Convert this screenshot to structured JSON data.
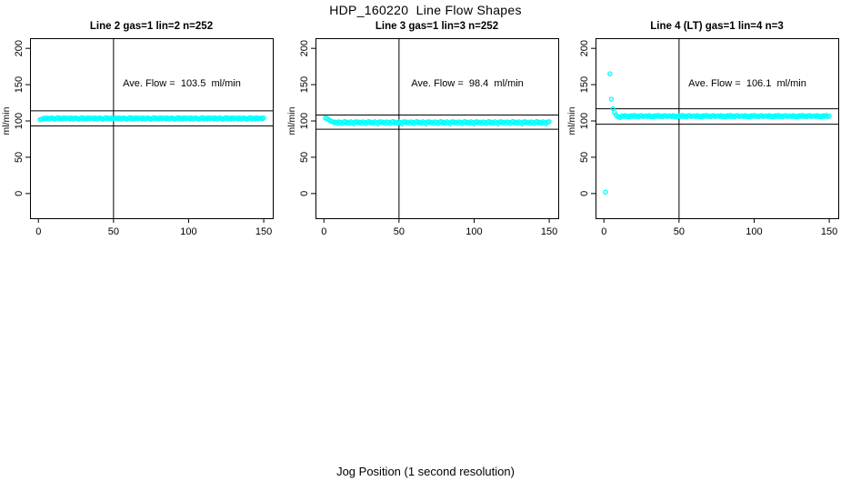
{
  "page": {
    "title": "HDP_160220  Line Flow Shapes",
    "xlabel": "Jog Position (1 second resolution)"
  },
  "chart_data": [
    {
      "type": "scatter",
      "title": "Line 2 gas=1 lin=2 n=252",
      "ylabel": "ml/min",
      "annotation": "Ave. Flow =  103.5  ml/min",
      "ave_flow": 103.5,
      "x_ticks": [
        0,
        50,
        100,
        150
      ],
      "y_ticks": [
        0,
        50,
        100,
        150,
        200
      ],
      "xlim": [
        -5.6,
        156
      ],
      "ylim": [
        -34,
        214
      ],
      "vline": 50,
      "hlines": [
        113.9,
        93.2
      ],
      "point_color": "#00FFFF",
      "annotation_x": 95,
      "annotation_y": 150,
      "points": [
        [
          1,
          101.6
        ],
        [
          2,
          102.4
        ],
        [
          3,
          103.0
        ]
      ],
      "steady": {
        "x_start": 4,
        "x_end": 150,
        "step": 1,
        "base": 103.5,
        "wiggle": [
          0.4,
          -0.5,
          0.8,
          -0.9,
          0.1,
          0.7,
          -0.3,
          -1.1,
          0.5,
          1.0,
          -0.6,
          0.2,
          -0.8,
          0.9,
          -0.2,
          0.3
        ]
      }
    },
    {
      "type": "scatter",
      "title": "Line 3 gas=1 lin=3 n=252",
      "ylabel": "ml/min",
      "annotation": "Ave. Flow =  98.4  ml/min",
      "ave_flow": 98.4,
      "x_ticks": [
        0,
        50,
        100,
        150
      ],
      "y_ticks": [
        0,
        50,
        100,
        150,
        200
      ],
      "xlim": [
        -5.6,
        156
      ],
      "ylim": [
        -34,
        214
      ],
      "vline": 50,
      "hlines": [
        108.2,
        88.6
      ],
      "point_color": "#00FFFF",
      "annotation_x": 95,
      "annotation_y": 150,
      "points": [
        [
          1,
          103.8
        ],
        [
          2,
          103.4
        ],
        [
          3,
          102.2
        ],
        [
          4,
          100.6
        ],
        [
          5,
          99.4
        ]
      ],
      "steady": {
        "x_start": 6,
        "x_end": 150,
        "step": 1,
        "base": 98.2,
        "wiggle": [
          0.8,
          -0.7,
          0.3,
          -1.6,
          0.6,
          -0.2,
          -1.9,
          0.4,
          1.0,
          -0.9,
          0.1,
          -1.4,
          0.7,
          -0.4,
          -2.1,
          0.5
        ]
      }
    },
    {
      "type": "scatter",
      "title": "Line 4 (LT) gas=1 lin=4 n=3",
      "ylabel": "ml/min",
      "annotation": "Ave. Flow =  106.1  ml/min",
      "ave_flow": 106.1,
      "x_ticks": [
        0,
        50,
        100,
        150
      ],
      "y_ticks": [
        0,
        50,
        100,
        150,
        200
      ],
      "xlim": [
        -5.6,
        156
      ],
      "ylim": [
        -34,
        214
      ],
      "vline": 50,
      "hlines": [
        116.7,
        95.5
      ],
      "point_color": "#00FFFF",
      "annotation_x": 95,
      "annotation_y": 150,
      "points": [
        [
          1,
          2
        ],
        [
          4,
          165
        ],
        [
          5,
          130
        ],
        [
          6,
          117
        ],
        [
          7,
          112
        ],
        [
          8,
          108.5
        ],
        [
          9,
          106.3
        ],
        [
          10,
          105.2
        ],
        [
          11,
          104.8
        ]
      ],
      "steady": {
        "x_start": 12,
        "x_end": 150,
        "step": 1,
        "base": 106.6,
        "wiggle": [
          0.5,
          -0.4,
          0.9,
          -0.8,
          0.2,
          -1.1,
          0.6,
          -0.2,
          1.1,
          -0.6,
          0.3,
          -0.9,
          0.4,
          0.8,
          -0.5,
          0.1
        ]
      }
    }
  ]
}
